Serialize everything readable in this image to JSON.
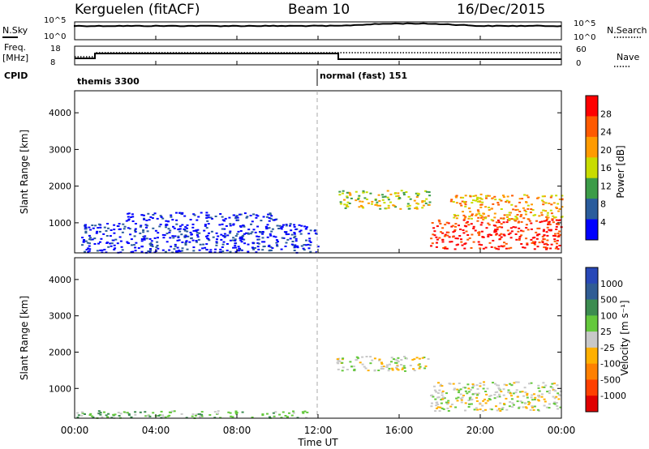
{
  "header": {
    "station": "Kerguelen (fitACF)",
    "beam": "Beam 10",
    "date": "16/Dec/2015"
  },
  "strips": {
    "nsky_label": "N.Sky",
    "nsearch_label": "N.Search",
    "nsky_ticks": [
      "10^5",
      "10^0"
    ],
    "freq_label_1": "Freq.",
    "freq_label_2": "[MHz]",
    "freq_ticks": [
      "18",
      "8"
    ],
    "nave_label": "Nave",
    "nave_ticks": [
      "60",
      "0"
    ],
    "cpid_label": "CPID",
    "cpid_segments": [
      {
        "name": "themis 3300",
        "start_hour": 0
      },
      {
        "name": "normal (fast) 151",
        "start_hour": 12
      }
    ]
  },
  "time_axis": {
    "label": "Time UT",
    "ticks": [
      "00:00",
      "04:00",
      "08:00",
      "12:00",
      "16:00",
      "20:00",
      "00:00"
    ]
  },
  "chart_data": [
    {
      "type": "heatmap",
      "name": "power",
      "ylabel": "Slant Range [km]",
      "yticks": [
        1000,
        2000,
        3000,
        4000
      ],
      "ylim": [
        180,
        4600
      ],
      "xlim_hours": [
        0,
        24
      ],
      "colorbar": {
        "label": "Power [dB]",
        "ticks": [
          "28",
          "24",
          "20",
          "16",
          "12",
          "8",
          "4"
        ],
        "colors": [
          "#ff0000",
          "#ff5a00",
          "#ff9b00",
          "#c8dc00",
          "#3c9c48",
          "#2a5c9c",
          "#0000ff"
        ]
      },
      "echo_regions": [
        {
          "t0": 0.3,
          "t1": 12.0,
          "r0": 200,
          "r1": 1000,
          "level": 6
        },
        {
          "t0": 2.5,
          "t1": 10.0,
          "r0": 1050,
          "r1": 1300,
          "level": 6
        },
        {
          "t0": 13.0,
          "t1": 17.5,
          "r0": 1400,
          "r1": 1900,
          "level": 3
        },
        {
          "t0": 17.5,
          "t1": 24.0,
          "r0": 300,
          "r1": 1100,
          "level": 0
        },
        {
          "t0": 18.5,
          "t1": 24.0,
          "r0": 1100,
          "r1": 1800,
          "level": 2
        }
      ]
    },
    {
      "type": "heatmap",
      "name": "velocity",
      "ylabel": "Slant Range [km]",
      "yticks": [
        1000,
        2000,
        3000,
        4000
      ],
      "ylim": [
        180,
        4600
      ],
      "xlim_hours": [
        0,
        24
      ],
      "colorbar": {
        "label": "Velocity [m s⁻¹]",
        "ticks": [
          "1000",
          "500",
          "100",
          "25",
          "-25",
          "-100",
          "-500",
          "-1000"
        ],
        "colors": [
          "#2848b8",
          "#305c94",
          "#3c8c50",
          "#64c83c",
          "#c8c8c8",
          "#ffb000",
          "#ff8000",
          "#ff4000",
          "#e00000"
        ]
      },
      "echo_regions": [
        {
          "t0": 0.0,
          "t1": 11.5,
          "r0": 200,
          "r1": 400,
          "level": 3
        },
        {
          "t0": 12.8,
          "t1": 17.5,
          "r0": 1500,
          "r1": 1900,
          "level": 4
        },
        {
          "t0": 17.5,
          "t1": 24.0,
          "r0": 400,
          "r1": 1200,
          "level": 4
        }
      ]
    }
  ]
}
